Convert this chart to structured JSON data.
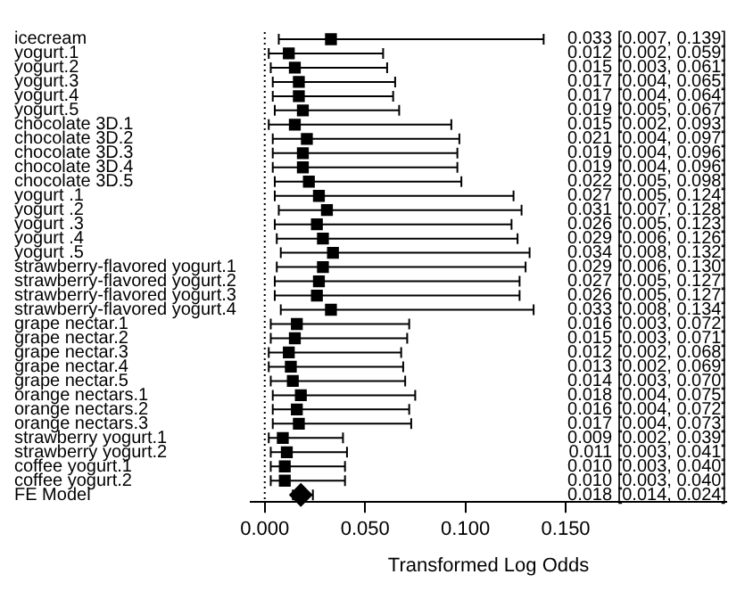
{
  "chart_data": {
    "type": "scatter",
    "orientation": "horizontal",
    "xlabel": "Transformed Log Odds",
    "xlim": [
      -0.007,
      0.23
    ],
    "xticks": [
      {
        "value": 0,
        "label": "0.000"
      },
      {
        "value": 0.05,
        "label": "0.050"
      },
      {
        "value": 0.1,
        "label": "0.100"
      },
      {
        "value": 0.15,
        "label": "0.150"
      }
    ],
    "grid": false,
    "legend": false,
    "categories": [
      "icecream",
      "yogurt.1",
      "yogurt.2",
      "yogurt.3",
      "yogurt.4",
      "yogurt.5",
      "chocolate 3D.1",
      "chocolate 3D.2",
      "chocolate 3D.3",
      "chocolate 3D.4",
      "chocolate 3D.5",
      "yogurt .1",
      "yogurt .2",
      "yogurt .3",
      "yogurt .4",
      "yogurt .5",
      "strawberry-flavored yogurt.1",
      "strawberry-flavored yogurt.2",
      "strawberry-flavored yogurt.3",
      "strawberry-flavored yogurt.4",
      "grape nectar.1",
      "grape nectar.2",
      "grape nectar.3",
      "grape nectar.4",
      "grape nectar.5",
      "orange nectars.1",
      "orange nectars.2",
      "orange nectars.3",
      "strawberry yogurt.1",
      "strawberry yogurt.2",
      "coffee yogurt.1",
      "coffee yogurt.2",
      "FE Model"
    ],
    "ref_lines": [
      {
        "axis": "x",
        "value": 0,
        "line_style": "dotted",
        "color": "#000000"
      }
    ],
    "annotations": [
      "0.033 [0.007, 0.139]",
      "0.012 [0.002, 0.059]",
      "0.015 [0.003, 0.061]",
      "0.017 [0.004, 0.065]",
      "0.017 [0.004, 0.064]",
      "0.019 [0.005, 0.067]",
      "0.015 [0.002, 0.093]",
      "0.021 [0.004, 0.097]",
      "0.019 [0.004, 0.096]",
      "0.019 [0.004, 0.096]",
      "0.022 [0.005, 0.098]",
      "0.027 [0.005, 0.124]",
      "0.031 [0.007, 0.128]",
      "0.026 [0.005, 0.123]",
      "0.029 [0.006, 0.126]",
      "0.034 [0.008, 0.132]",
      "0.029 [0.006, 0.130]",
      "0.027 [0.005, 0.127]",
      "0.026 [0.005, 0.127]",
      "0.033 [0.008, 0.134]",
      "0.016 [0.003, 0.072]",
      "0.015 [0.003, 0.071]",
      "0.012 [0.002, 0.068]",
      "0.013 [0.002, 0.069]",
      "0.014 [0.003, 0.070]",
      "0.018 [0.004, 0.075]",
      "0.016 [0.004, 0.072]",
      "0.017 [0.004, 0.073]",
      "0.009 [0.002, 0.039]",
      "0.011 [0.003, 0.041]",
      "0.010 [0.003, 0.040]",
      "0.010 [0.003, 0.040]",
      "0.018 [0.014, 0.024]"
    ],
    "series": [
      {
        "color": "#000000",
        "marker": "square",
        "values": [
          0.033,
          0.012,
          0.015,
          0.017,
          0.017,
          0.019,
          0.015,
          0.021,
          0.019,
          0.019,
          0.022,
          0.027,
          0.031,
          0.026,
          0.029,
          0.034,
          0.029,
          0.027,
          0.026,
          0.033,
          0.016,
          0.015,
          0.012,
          0.013,
          0.014,
          0.018,
          0.016,
          0.017,
          0.009,
          0.011,
          0.01,
          0.01,
          null
        ],
        "errors": [
          [
            0.007,
            0.139
          ],
          [
            0.002,
            0.059
          ],
          [
            0.003,
            0.061
          ],
          [
            0.004,
            0.065
          ],
          [
            0.004,
            0.064
          ],
          [
            0.005,
            0.067
          ],
          [
            0.002,
            0.093
          ],
          [
            0.004,
            0.097
          ],
          [
            0.004,
            0.096
          ],
          [
            0.004,
            0.096
          ],
          [
            0.005,
            0.098
          ],
          [
            0.005,
            0.124
          ],
          [
            0.007,
            0.128
          ],
          [
            0.005,
            0.123
          ],
          [
            0.006,
            0.126
          ],
          [
            0.008,
            0.132
          ],
          [
            0.006,
            0.13
          ],
          [
            0.005,
            0.127
          ],
          [
            0.005,
            0.127
          ],
          [
            0.008,
            0.134
          ],
          [
            0.003,
            0.072
          ],
          [
            0.003,
            0.071
          ],
          [
            0.002,
            0.068
          ],
          [
            0.002,
            0.069
          ],
          [
            0.003,
            0.07
          ],
          [
            0.004,
            0.075
          ],
          [
            0.004,
            0.072
          ],
          [
            0.004,
            0.073
          ],
          [
            0.002,
            0.039
          ],
          [
            0.003,
            0.041
          ],
          [
            0.003,
            0.04
          ],
          [
            0.003,
            0.04
          ],
          null
        ]
      },
      {
        "color": "#000000",
        "marker": "diamond",
        "values": [
          null,
          null,
          null,
          null,
          null,
          null,
          null,
          null,
          null,
          null,
          null,
          null,
          null,
          null,
          null,
          null,
          null,
          null,
          null,
          null,
          null,
          null,
          null,
          null,
          null,
          null,
          null,
          null,
          null,
          null,
          null,
          null,
          0.018
        ],
        "errors": [
          null,
          null,
          null,
          null,
          null,
          null,
          null,
          null,
          null,
          null,
          null,
          null,
          null,
          null,
          null,
          null,
          null,
          null,
          null,
          null,
          null,
          null,
          null,
          null,
          null,
          null,
          null,
          null,
          null,
          null,
          null,
          null,
          [
            0.014,
            0.024
          ]
        ]
      }
    ]
  }
}
